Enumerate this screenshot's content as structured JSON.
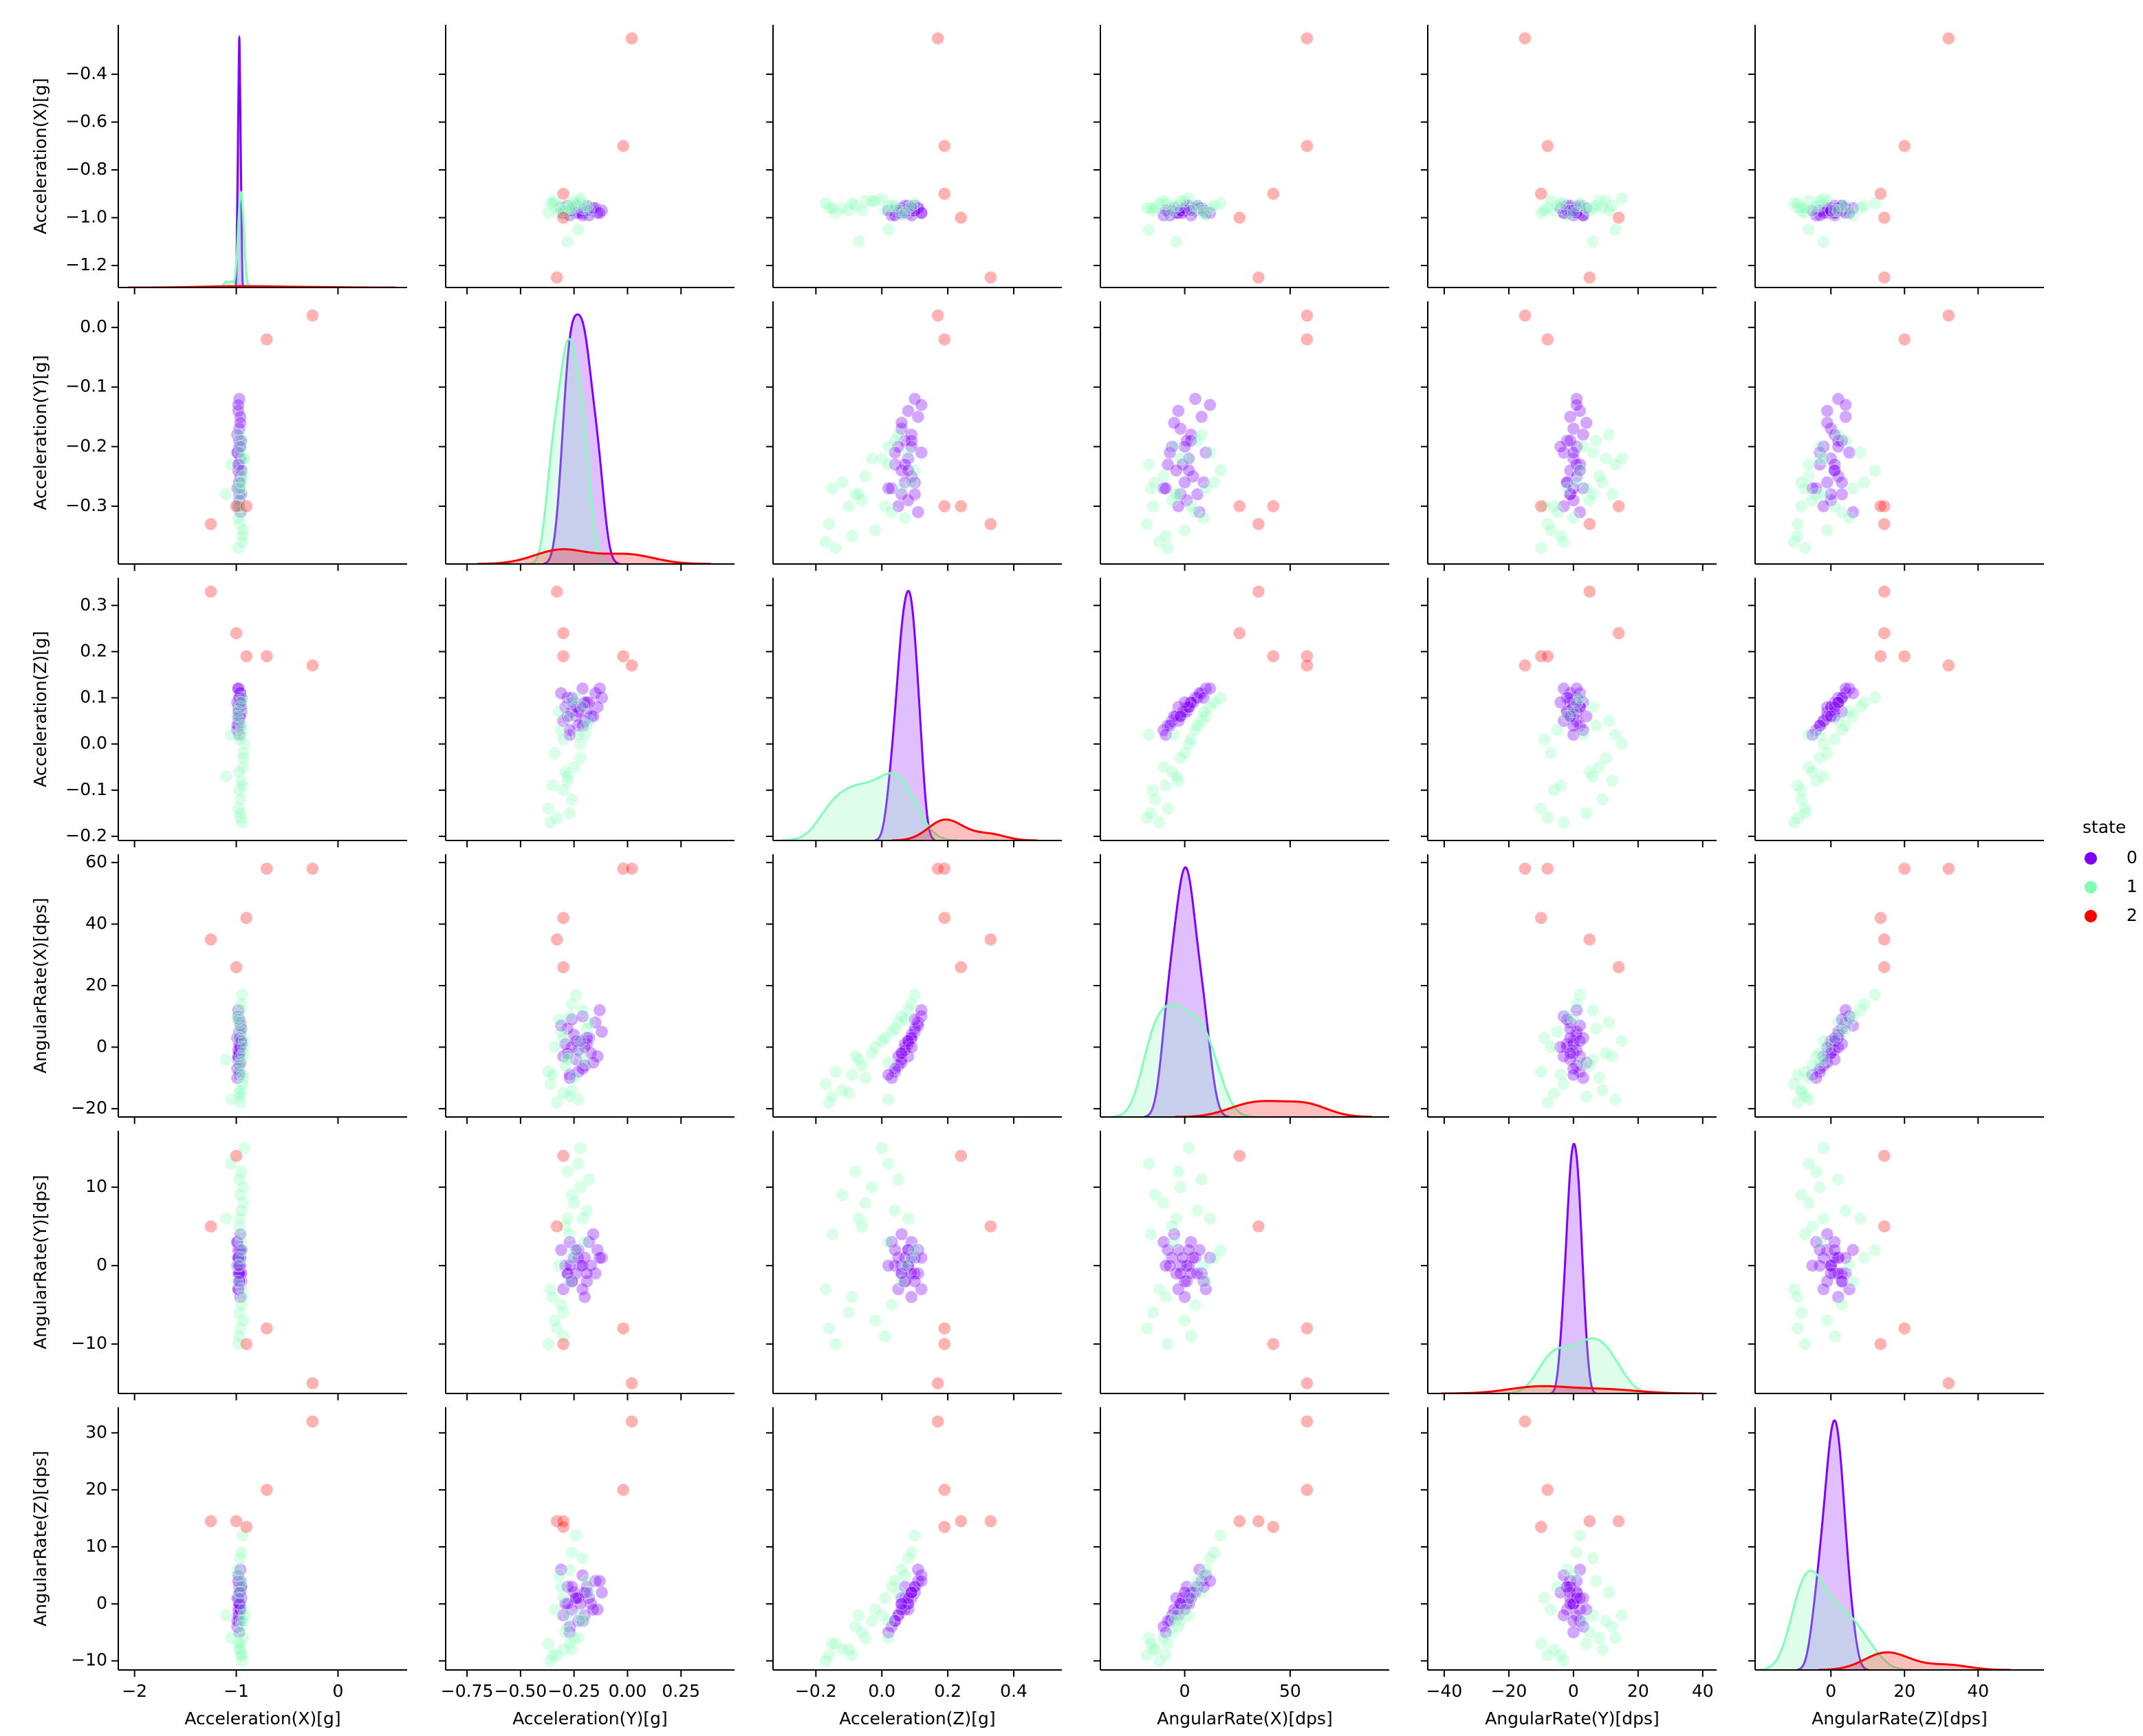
{
  "chart_data": {
    "type": "pairplot",
    "legend_title": "state",
    "variables": [
      {
        "name": "Acceleration(X)[g]",
        "xlim": [
          -2.16,
          0.68
        ],
        "xticks": [
          {
            "value": -2,
            "label": "−2"
          },
          {
            "value": -1,
            "label": "−1"
          },
          0
        ],
        "ylim": [
          -1.292,
          -0.193
        ],
        "yticks": [
          {
            "value": -1.2,
            "label": "−1.2"
          },
          {
            "value": -1.0,
            "label": "−1.0"
          },
          {
            "value": -0.8,
            "label": "−0.8"
          },
          {
            "value": -0.6,
            "label": "−0.6"
          },
          {
            "value": -0.4,
            "label": "−0.4"
          }
        ]
      },
      {
        "name": "Acceleration(Y)[g]",
        "xlim": [
          -0.85,
          0.5
        ],
        "xticks": [
          {
            "value": -0.75,
            "label": "−0.75"
          },
          {
            "value": -0.5,
            "label": "−0.50"
          },
          {
            "value": -0.25,
            "label": "−0.25"
          },
          {
            "value": 0,
            "label": "0.00"
          },
          {
            "value": 0.25,
            "label": "0.25"
          }
        ],
        "ylim": [
          -0.397,
          0.044
        ],
        "yticks": [
          {
            "value": -0.3,
            "label": "−0.3"
          },
          {
            "value": -0.2,
            "label": "−0.2"
          },
          {
            "value": -0.1,
            "label": "−0.1"
          },
          {
            "value": 0,
            "label": "0.0"
          }
        ]
      },
      {
        "name": "Acceleration(Z)[g]",
        "xlim": [
          -0.33,
          0.546
        ],
        "xticks": [
          {
            "value": -0.2,
            "label": "−0.2"
          },
          {
            "value": 0,
            "label": "0.0"
          },
          0.2,
          0.4
        ],
        "ylim": [
          -0.209,
          0.36
        ],
        "yticks": [
          {
            "value": -0.2,
            "label": "−0.2"
          },
          {
            "value": -0.1,
            "label": "−0.1"
          },
          {
            "value": 0,
            "label": "0.0"
          },
          0.1,
          0.2,
          0.3
        ]
      },
      {
        "name": "AngularRate(X)[dps]",
        "xlim": [
          -40,
          97
        ],
        "xticks": [
          0,
          50
        ],
        "ylim": [
          -22.7,
          62.7
        ],
        "yticks": [
          {
            "value": -20,
            "label": "−20"
          },
          0,
          20,
          40,
          60
        ]
      },
      {
        "name": "AngularRate(Y)[dps]",
        "xlim": [
          -45.1,
          44.3
        ],
        "xticks": [
          {
            "value": -40,
            "label": "−40"
          },
          {
            "value": -20,
            "label": "−20"
          },
          0,
          20,
          40
        ],
        "ylim": [
          -16.3,
          17.2
        ],
        "yticks": [
          {
            "value": -10,
            "label": "−10"
          },
          0,
          10
        ]
      },
      {
        "name": "AngularRate(Z)[dps]",
        "xlim": [
          -20.6,
          57.9
        ],
        "xticks": [
          0,
          20,
          40
        ],
        "ylim": [
          -11.6,
          34.5
        ],
        "yticks": [
          {
            "value": -10,
            "label": "−10"
          },
          0,
          10,
          20,
          30
        ]
      }
    ],
    "series": [
      {
        "name": "0",
        "color": "#8000ff",
        "points": [
          [
            -0.97,
            -0.12,
            0.1,
            5,
            1,
            2
          ],
          [
            -0.98,
            -0.14,
            0.08,
            -3,
            2,
            -1
          ],
          [
            -0.96,
            -0.15,
            0.11,
            8,
            -1,
            4
          ],
          [
            -0.97,
            -0.17,
            0.06,
            -2,
            0,
            0
          ],
          [
            -0.99,
            -0.18,
            0.09,
            3,
            3,
            1
          ],
          [
            -0.95,
            -0.19,
            0.07,
            1,
            -2,
            3
          ],
          [
            -0.97,
            -0.2,
            0.05,
            -6,
            1,
            -2
          ],
          [
            -0.98,
            -0.21,
            0.12,
            10,
            -3,
            5
          ],
          [
            -0.96,
            -0.22,
            0.08,
            2,
            0,
            0
          ],
          [
            -0.97,
            -0.23,
            0.04,
            -8,
            2,
            -3
          ],
          [
            -0.98,
            -0.24,
            0.06,
            -4,
            -1,
            1
          ],
          [
            -0.96,
            -0.25,
            0.09,
            4,
            1,
            2
          ],
          [
            -0.97,
            -0.26,
            0.07,
            0,
            -2,
            -1
          ],
          [
            -0.99,
            -0.27,
            0.03,
            -10,
            3,
            -4
          ],
          [
            -0.95,
            -0.28,
            0.1,
            6,
            -1,
            3
          ],
          [
            -0.97,
            -0.29,
            0.08,
            1,
            0,
            0
          ],
          [
            -0.98,
            -0.3,
            0.05,
            -3,
            -3,
            -2
          ],
          [
            -0.96,
            -0.31,
            0.11,
            7,
            2,
            6
          ],
          [
            -0.97,
            -0.19,
            0.09,
            3,
            -1,
            2
          ],
          [
            -0.98,
            -0.23,
            0.07,
            -1,
            1,
            1
          ],
          [
            -0.96,
            -0.16,
            0.06,
            -5,
            4,
            -1
          ],
          [
            -0.97,
            -0.26,
            0.1,
            9,
            -2,
            3
          ],
          [
            -0.99,
            -0.21,
            0.04,
            -7,
            0,
            -3
          ],
          [
            -0.95,
            -0.24,
            0.08,
            2,
            2,
            1
          ],
          [
            -0.97,
            -0.28,
            0.06,
            -2,
            -1,
            0
          ],
          [
            -0.98,
            -0.13,
            0.12,
            12,
            1,
            4
          ],
          [
            -0.96,
            -0.2,
            0.09,
            0,
            -4,
            2
          ],
          [
            -0.97,
            -0.27,
            0.02,
            -9,
            0,
            -5
          ]
        ]
      },
      {
        "name": "1",
        "color": "#80ffb4",
        "points": [
          [
            -0.95,
            -0.2,
            0.02,
            -5,
            3,
            -3
          ],
          [
            -0.93,
            -0.25,
            -0.05,
            -10,
            8,
            -6
          ],
          [
            -0.97,
            -0.3,
            -0.1,
            -15,
            -6,
            -8
          ],
          [
            -0.96,
            -0.33,
            -0.16,
            -18,
            -8,
            -9
          ],
          [
            -0.94,
            -0.36,
            -0.17,
            -12,
            -3,
            -10
          ],
          [
            -0.98,
            -0.37,
            -0.14,
            -8,
            -10,
            -7
          ],
          [
            -0.95,
            -0.28,
            -0.08,
            -3,
            12,
            -4
          ],
          [
            -0.92,
            -0.22,
            0.0,
            2,
            15,
            -2
          ],
          [
            -0.97,
            -0.18,
            0.05,
            8,
            11,
            2
          ],
          [
            -0.96,
            -0.21,
            0.08,
            12,
            6,
            8
          ],
          [
            -0.94,
            -0.24,
            0.1,
            17,
            2,
            12
          ],
          [
            -0.99,
            -0.27,
            0.06,
            10,
            -2,
            6
          ],
          [
            -0.95,
            -0.31,
            0.03,
            5,
            -5,
            3
          ],
          [
            -0.93,
            -0.34,
            -0.02,
            0,
            -7,
            -1
          ],
          [
            -0.97,
            -0.29,
            -0.06,
            -6,
            5,
            -5
          ],
          [
            -0.96,
            -0.26,
            -0.12,
            -14,
            9,
            -8
          ],
          [
            -1.05,
            -0.23,
            0.02,
            -17,
            13,
            -6
          ],
          [
            -0.95,
            -0.19,
            0.04,
            6,
            7,
            4
          ],
          [
            -0.94,
            -0.35,
            -0.09,
            -9,
            -4,
            -9
          ],
          [
            -0.98,
            -0.32,
            0.07,
            9,
            0,
            5
          ],
          [
            -0.96,
            -0.27,
            -0.15,
            -16,
            4,
            -7
          ],
          [
            -0.93,
            -0.22,
            -0.03,
            -2,
            10,
            -3
          ],
          [
            -0.97,
            -0.3,
            0.01,
            3,
            -9,
            1
          ],
          [
            -0.95,
            -0.26,
            0.09,
            14,
            1,
            9
          ],
          [
            -1.1,
            -0.28,
            -0.07,
            -4,
            6,
            -2
          ]
        ]
      },
      {
        "name": "2",
        "color": "#ff0000",
        "points": [
          [
            -1.25,
            -0.33,
            0.33,
            35,
            5,
            14.5
          ],
          [
            -1.0,
            -0.3,
            0.24,
            26,
            14,
            14.5
          ],
          [
            -0.9,
            -0.3,
            0.19,
            42,
            -10,
            13.5
          ],
          [
            -0.7,
            -0.02,
            0.19,
            58,
            -8,
            20
          ],
          [
            -0.25,
            0.02,
            0.17,
            58,
            -15,
            32
          ]
        ]
      }
    ]
  }
}
